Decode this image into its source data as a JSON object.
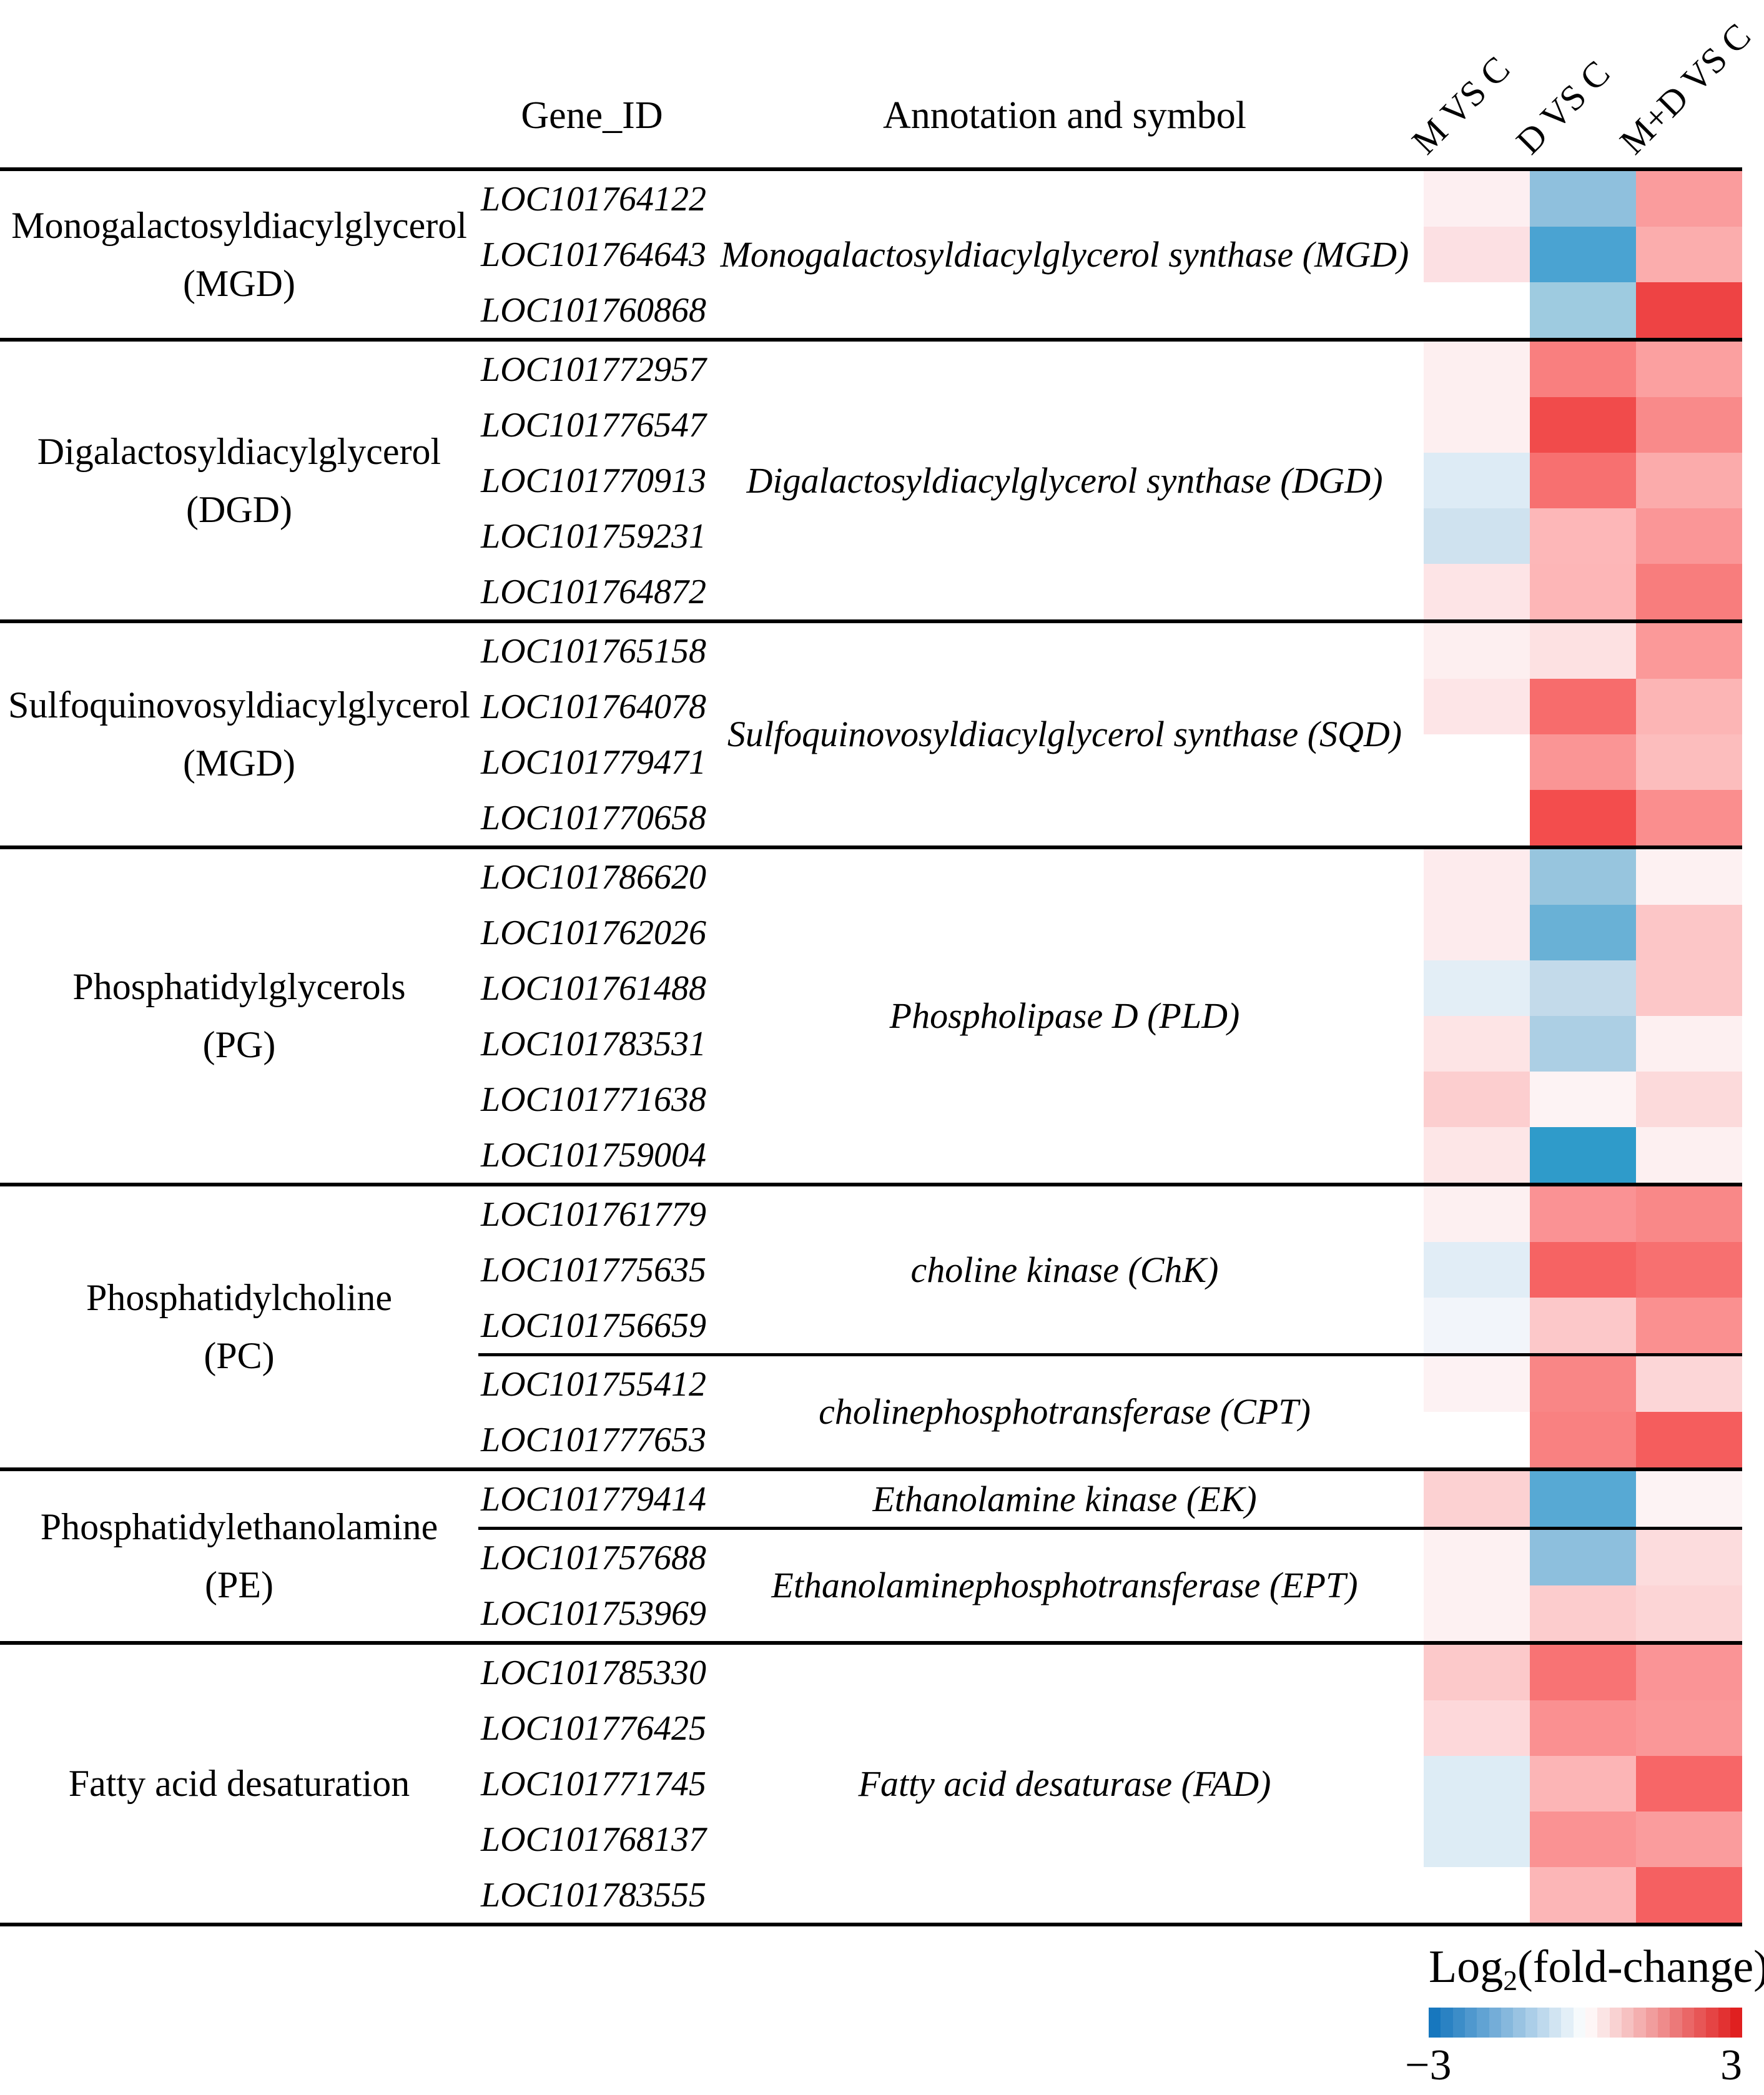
{
  "table": {
    "col_headers": {
      "gene_id": "Gene_ID",
      "annotation": "Annotation and symbol",
      "comparisons": [
        "M VS C",
        "D VS C",
        "M+D VS C"
      ]
    },
    "groups": [
      {
        "label_lines": [
          "Monogalactosyldiacylglycerol",
          "(MGD)"
        ],
        "sections": [
          {
            "annotation": "Monogalactosyldiacylglycerol synthase (MGD)",
            "rows": [
              {
                "gene_id": "LOC101764122",
                "cells": [
                  "#fdeff1",
                  "#8fc0dd",
                  "#fa9c9d"
                ]
              },
              {
                "gene_id": "LOC101764643",
                "cells": [
                  "#fce0e3",
                  "#4aa3d2",
                  "#fbadad"
                ]
              },
              {
                "gene_id": "LOC101760868",
                "cells": [
                  "#ffffff",
                  "#9ecbe0",
                  "#ee4344"
                ]
              }
            ]
          }
        ]
      },
      {
        "label_lines": [
          "Digalactosyldiacylglycerol",
          "(DGD)"
        ],
        "sections": [
          {
            "annotation": "Digalactosyldiacylglycerol synthase (DGD)",
            "rows": [
              {
                "gene_id": "LOC101772957",
                "cells": [
                  "#fdeff0",
                  "#f97f7f",
                  "#fba0a0"
                ]
              },
              {
                "gene_id": "LOC101776547",
                "cells": [
                  "#fdeff0",
                  "#f14b4b",
                  "#f98a8a"
                ]
              },
              {
                "gene_id": "LOC101770913",
                "cells": [
                  "#ddebf5",
                  "#f77070",
                  "#fbabab"
                ]
              },
              {
                "gene_id": "LOC101759231",
                "cells": [
                  "#cfe2ef",
                  "#fdb7b8",
                  "#fa9697"
                ]
              },
              {
                "gene_id": "LOC101764872",
                "cells": [
                  "#fde4e6",
                  "#fdb6b7",
                  "#f87d7d"
                ]
              }
            ]
          }
        ]
      },
      {
        "label_lines": [
          "Sulfoquinovosyldiacylglycerol",
          "(MGD)"
        ],
        "sections": [
          {
            "annotation": "Sulfoquinovosyldiacylglycerol synthase (SQD)",
            "rows": [
              {
                "gene_id": "LOC101765158",
                "cells": [
                  "#fdeff0",
                  "#fde1e2",
                  "#fb9999"
                ]
              },
              {
                "gene_id": "LOC101764078",
                "cells": [
                  "#fde5e7",
                  "#f76c6c",
                  "#fcb5b5"
                ]
              },
              {
                "gene_id": "LOC101779471",
                "cells": [
                  "#ffffff",
                  "#fa9595",
                  "#fcbdbd"
                ]
              },
              {
                "gene_id": "LOC101770658",
                "cells": [
                  "#ffffff",
                  "#f34d4d",
                  "#fa8e8e"
                ]
              }
            ]
          }
        ]
      },
      {
        "label_lines": [
          "Phosphatidylglycerols",
          "(PG)"
        ],
        "sections": [
          {
            "annotation": "Phospholipase D (PLD)",
            "rows": [
              {
                "gene_id": "LOC101786620",
                "cells": [
                  "#fdebed",
                  "#97c5de",
                  "#fdf1f2"
                ]
              },
              {
                "gene_id": "LOC101762026",
                "cells": [
                  "#fdebed",
                  "#69b1d6",
                  "#fcc6c7"
                ]
              },
              {
                "gene_id": "LOC101761488",
                "cells": [
                  "#e3eef6",
                  "#c3daea",
                  "#fcc7c8"
                ]
              },
              {
                "gene_id": "LOC101783531",
                "cells": [
                  "#fde4e5",
                  "#accfe4",
                  "#fdf0f1"
                ]
              },
              {
                "gene_id": "LOC101771638",
                "cells": [
                  "#fccecf",
                  "#fdf3f4",
                  "#fcdadb"
                ]
              },
              {
                "gene_id": "LOC101759004",
                "cells": [
                  "#fde6e7",
                  "#2f9bca",
                  "#fdf0f1"
                ]
              }
            ]
          }
        ]
      },
      {
        "label_lines": [
          "Phosphatidylcholine",
          "(PC)"
        ],
        "sections": [
          {
            "annotation": "choline kinase (ChK)",
            "rows": [
              {
                "gene_id": "LOC101761779",
                "cells": [
                  "#fdf0f1",
                  "#fa9294",
                  "#f98888"
                ]
              },
              {
                "gene_id": "LOC101775635",
                "cells": [
                  "#e1edf6",
                  "#f66363",
                  "#f77070"
                ]
              },
              {
                "gene_id": "LOC101756659",
                "cells": [
                  "#f2f5fa",
                  "#fcc8c9",
                  "#fa9090"
                ]
              }
            ]
          },
          {
            "annotation": "cholinephosphotransferase (CPT)",
            "rows": [
              {
                "gene_id": "LOC101755412",
                "cells": [
                  "#fdf2f3",
                  "#f98686",
                  "#fcd6d7"
                ]
              },
              {
                "gene_id": "LOC101777653",
                "cells": [
                  "#ffffff",
                  "#f98181",
                  "#f55d5d"
                ]
              }
            ]
          }
        ]
      },
      {
        "label_lines": [
          "Phosphatidylethanolamine",
          "(PE)"
        ],
        "sections": [
          {
            "annotation": "Ethanolamine kinase (EK)",
            "rows": [
              {
                "gene_id": "LOC101779414",
                "cells": [
                  "#fcd1d2",
                  "#57a9d4",
                  "#fdf3f4"
                ]
              }
            ]
          },
          {
            "annotation": "Ethanolaminephosphotransferase (EPT)",
            "rows": [
              {
                "gene_id": "LOC101757688",
                "cells": [
                  "#fdf1f2",
                  "#8dbfdd",
                  "#fcdcdd"
                ]
              },
              {
                "gene_id": "LOC101753969",
                "cells": [
                  "#fdf1f2",
                  "#fccccd",
                  "#fcd5d6"
                ]
              }
            ]
          }
        ]
      },
      {
        "label_lines": [
          "Fatty acid desaturation"
        ],
        "sections": [
          {
            "annotation": "Fatty acid desaturase (FAD)",
            "rows": [
              {
                "gene_id": "LOC101785330",
                "cells": [
                  "#fcc9ca",
                  "#f87374",
                  "#fa9496"
                ]
              },
              {
                "gene_id": "LOC101776425",
                "cells": [
                  "#fdd8da",
                  "#fa9091",
                  "#fa9798"
                ]
              },
              {
                "gene_id": "LOC101771745",
                "cells": [
                  "#ddecf5",
                  "#fcb5b6",
                  "#f76667"
                ]
              },
              {
                "gene_id": "LOC101768137",
                "cells": [
                  "#ddecf5",
                  "#fa9293",
                  "#fa9c9d"
                ]
              },
              {
                "gene_id": "LOC101783555",
                "cells": [
                  "#ffffff",
                  "#fcb6b7",
                  "#f56061"
                ]
              }
            ]
          }
        ]
      }
    ]
  },
  "legend": {
    "title_log": "Log",
    "title_sub": "2",
    "title_rest": "(fold-change)",
    "min_label": "−3",
    "max_label": "3",
    "min_value": -3,
    "max_value": 3,
    "min_color": "#1777be",
    "mid_color": "#ffffff",
    "max_color": "#e02020",
    "steps": 26
  },
  "chart_data": {
    "type": "heatmap",
    "title": "",
    "columns": [
      "M VS C",
      "D VS C",
      "M+D VS C"
    ],
    "value_label": "Log2(fold-change)",
    "value_range": [
      -3,
      3
    ],
    "legend_position": "bottom-right",
    "rows": [
      {
        "group": "Monogalactosyldiacylglycerol (MGD)",
        "annotation": "Monogalactosyldiacylglycerol synthase (MGD)",
        "gene": "LOC101764122",
        "values": [
          0.2,
          -1.4,
          1.3
        ]
      },
      {
        "group": "Monogalactosyldiacylglycerol (MGD)",
        "annotation": "Monogalactosyldiacylglycerol synthase (MGD)",
        "gene": "LOC101764643",
        "values": [
          0.4,
          -2.3,
          1.1
        ]
      },
      {
        "group": "Monogalactosyldiacylglycerol (MGD)",
        "annotation": "Monogalactosyldiacylglycerol synthase (MGD)",
        "gene": "LOC101760868",
        "values": [
          0.0,
          -1.3,
          2.5
        ]
      },
      {
        "group": "Digalactosyldiacylglycerol (DGD)",
        "annotation": "Digalactosyldiacylglycerol synthase (DGD)",
        "gene": "LOC101772957",
        "values": [
          0.2,
          1.7,
          1.3
        ]
      },
      {
        "group": "Digalactosyldiacylglycerol (DGD)",
        "annotation": "Digalactosyldiacylglycerol synthase (DGD)",
        "gene": "LOC101776547",
        "values": [
          0.2,
          2.4,
          1.6
        ]
      },
      {
        "group": "Digalactosyldiacylglycerol (DGD)",
        "annotation": "Digalactosyldiacylglycerol synthase (DGD)",
        "gene": "LOC101770913",
        "values": [
          -0.4,
          1.9,
          1.1
        ]
      },
      {
        "group": "Digalactosyldiacylglycerol (DGD)",
        "annotation": "Digalactosyldiacylglycerol synthase (DGD)",
        "gene": "LOC101759231",
        "values": [
          -0.6,
          1.0,
          1.4
        ]
      },
      {
        "group": "Digalactosyldiacylglycerol (DGD)",
        "annotation": "Digalactosyldiacylglycerol synthase (DGD)",
        "gene": "LOC101764872",
        "values": [
          0.4,
          1.0,
          1.7
        ]
      },
      {
        "group": "Sulfoquinovosyldiacylglycerol (MGD)",
        "annotation": "Sulfoquinovosyldiacylglycerol synthase (SQD)",
        "gene": "LOC101765158",
        "values": [
          0.2,
          0.4,
          1.4
        ]
      },
      {
        "group": "Sulfoquinovosyldiacylglycerol (MGD)",
        "annotation": "Sulfoquinovosyldiacylglycerol synthase (SQD)",
        "gene": "LOC101764078",
        "values": [
          0.3,
          2.0,
          1.0
        ]
      },
      {
        "group": "Sulfoquinovosyldiacylglycerol (MGD)",
        "annotation": "Sulfoquinovosyldiacylglycerol synthase (SQD)",
        "gene": "LOC101779471",
        "values": [
          0.0,
          1.4,
          0.9
        ]
      },
      {
        "group": "Sulfoquinovosyldiacylglycerol (MGD)",
        "annotation": "Sulfoquinovosyldiacylglycerol synthase (SQD)",
        "gene": "LOC101770658",
        "values": [
          0.0,
          2.4,
          1.5
        ]
      },
      {
        "group": "Phosphatidylglycerols (PG)",
        "annotation": "Phospholipase D (PLD)",
        "gene": "LOC101786620",
        "values": [
          0.3,
          -1.3,
          0.2
        ]
      },
      {
        "group": "Phosphatidylglycerols (PG)",
        "annotation": "Phospholipase D (PLD)",
        "gene": "LOC101762026",
        "values": [
          0.3,
          -1.9,
          0.8
        ]
      },
      {
        "group": "Phosphatidylglycerols (PG)",
        "annotation": "Phospholipase D (PLD)",
        "gene": "LOC101761488",
        "values": [
          -0.4,
          -0.8,
          0.8
        ]
      },
      {
        "group": "Phosphatidylglycerols (PG)",
        "annotation": "Phospholipase D (PLD)",
        "gene": "LOC101783531",
        "values": [
          0.4,
          -1.1,
          0.2
        ]
      },
      {
        "group": "Phosphatidylglycerols (PG)",
        "annotation": "Phospholipase D (PLD)",
        "gene": "LOC101771638",
        "values": [
          0.7,
          0.2,
          0.5
        ]
      },
      {
        "group": "Phosphatidylglycerols (PG)",
        "annotation": "Phospholipase D (PLD)",
        "gene": "LOC101759004",
        "values": [
          0.3,
          -2.7,
          0.2
        ]
      },
      {
        "group": "Phosphatidylcholine (PC)",
        "annotation": "choline kinase (ChK)",
        "gene": "LOC101761779",
        "values": [
          0.2,
          1.5,
          1.6
        ]
      },
      {
        "group": "Phosphatidylcholine (PC)",
        "annotation": "choline kinase (ChK)",
        "gene": "LOC101775635",
        "values": [
          -0.4,
          2.1,
          1.9
        ]
      },
      {
        "group": "Phosphatidylcholine (PC)",
        "annotation": "choline kinase (ChK)",
        "gene": "LOC101756659",
        "values": [
          -0.2,
          0.7,
          1.5
        ]
      },
      {
        "group": "Phosphatidylcholine (PC)",
        "annotation": "cholinephosphotransferase (CPT)",
        "gene": "LOC101755412",
        "values": [
          0.2,
          1.6,
          0.6
        ]
      },
      {
        "group": "Phosphatidylcholine (PC)",
        "annotation": "cholinephosphotransferase (CPT)",
        "gene": "LOC101777653",
        "values": [
          0.0,
          1.7,
          2.2
        ]
      },
      {
        "group": "Phosphatidylethanolamine (PE)",
        "annotation": "Ethanolamine kinase (EK)",
        "gene": "LOC101779414",
        "values": [
          0.6,
          -2.2,
          0.2
        ]
      },
      {
        "group": "Phosphatidylethanolamine (PE)",
        "annotation": "Ethanolaminephosphotransferase (EPT)",
        "gene": "LOC101757688",
        "values": [
          0.2,
          -1.5,
          0.5
        ]
      },
      {
        "group": "Phosphatidylethanolamine (PE)",
        "annotation": "Ethanolaminephosphotransferase (EPT)",
        "gene": "LOC101753969",
        "values": [
          0.2,
          0.7,
          0.6
        ]
      },
      {
        "group": "Fatty acid desaturation",
        "annotation": "Fatty acid desaturase (FAD)",
        "gene": "LOC101785330",
        "values": [
          0.7,
          1.9,
          1.4
        ]
      },
      {
        "group": "Fatty acid desaturation",
        "annotation": "Fatty acid desaturase (FAD)",
        "gene": "LOC101776425",
        "values": [
          0.5,
          1.5,
          1.4
        ]
      },
      {
        "group": "Fatty acid desaturation",
        "annotation": "Fatty acid desaturase (FAD)",
        "gene": "LOC101771745",
        "values": [
          -0.4,
          1.0,
          2.1
        ]
      },
      {
        "group": "Fatty acid desaturation",
        "annotation": "Fatty acid desaturase (FAD)",
        "gene": "LOC101768137",
        "values": [
          -0.4,
          1.5,
          1.3
        ]
      },
      {
        "group": "Fatty acid desaturation",
        "annotation": "Fatty acid desaturase (FAD)",
        "gene": "LOC101783555",
        "values": [
          0.0,
          1.0,
          2.1
        ]
      }
    ]
  }
}
